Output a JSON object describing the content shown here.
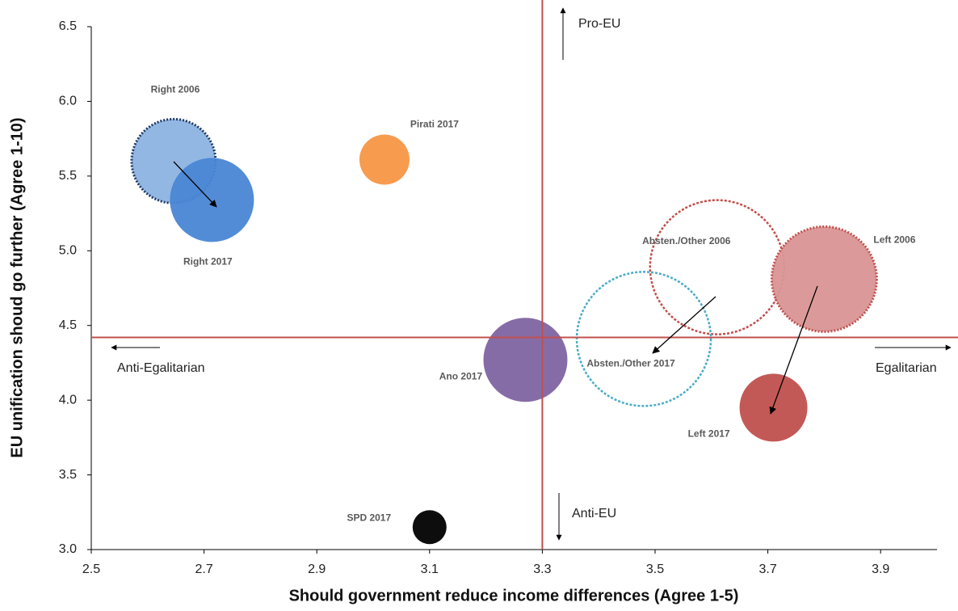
{
  "chart_data": {
    "type": "bubble",
    "x_label": "Should government reduce income differences (Agree 1-5)",
    "y_label": "EU unification shoud go further (Agree 1-10)",
    "xlim": [
      2.5,
      4.0
    ],
    "xticks": [
      2.5,
      2.7,
      2.9,
      3.1,
      3.3,
      3.5,
      3.7,
      3.9
    ],
    "ylim": [
      3.0,
      6.5
    ],
    "yticks": [
      {
        "value": 3,
        "label": "3.0"
      },
      3.5,
      {
        "value": 4,
        "label": "4.0"
      },
      4.5,
      {
        "value": 5,
        "label": "5.0"
      },
      5.5,
      {
        "value": 6,
        "label": "6.0"
      },
      6.5
    ],
    "reference_lines": {
      "x": 3.3,
      "y": 4.42,
      "color": "#c0504d"
    },
    "series": [
      {
        "name": "Right 2006",
        "x": [
          2.646
        ],
        "values": [
          5.6
        ],
        "sizes": [
          52
        ],
        "color": "#8db3e2",
        "border": "#1f3864",
        "dotted": true
      },
      {
        "name": "Right 2017",
        "x": [
          2.714
        ],
        "values": [
          5.34
        ],
        "sizes": [
          52
        ],
        "color": "#4a86d4",
        "border": null,
        "dotted": false
      },
      {
        "name": "Pirati 2017",
        "x": [
          3.02
        ],
        "values": [
          5.61
        ],
        "sizes": [
          31
        ],
        "color": "#f79646",
        "border": null,
        "dotted": false
      },
      {
        "name": "Ano 2017",
        "x": [
          3.27
        ],
        "values": [
          4.27
        ],
        "sizes": [
          52
        ],
        "color": "#8064a2",
        "border": null,
        "dotted": false
      },
      {
        "name": "SPD 2017",
        "x": [
          3.1
        ],
        "values": [
          3.15
        ],
        "sizes": [
          21
        ],
        "color": "#000000",
        "border": null,
        "dotted": false
      },
      {
        "name": "Absten./Other 2006",
        "x": [
          3.61
        ],
        "values": [
          4.89
        ],
        "sizes": [
          83
        ],
        "color": null,
        "border": "#c0504d",
        "dotted": true
      },
      {
        "name": "Absten./Other 2017",
        "x": [
          3.48
        ],
        "values": [
          4.41
        ],
        "sizes": [
          83
        ],
        "color": null,
        "border": "#4bacc6",
        "dotted": true
      },
      {
        "name": "Left 2006",
        "x": [
          3.8
        ],
        "values": [
          4.81
        ],
        "sizes": [
          65
        ],
        "color": "#d99594",
        "border": "#c0504d",
        "dotted": true
      },
      {
        "name": "Left 2017",
        "x": [
          3.71
        ],
        "values": [
          3.95
        ],
        "sizes": [
          42
        ],
        "color": "#c0504d",
        "border": null,
        "dotted": false
      }
    ],
    "annotations": [
      "Pro-EU",
      "Anti-EU",
      "Anti-Egalitarian",
      "Egalitarian"
    ]
  }
}
